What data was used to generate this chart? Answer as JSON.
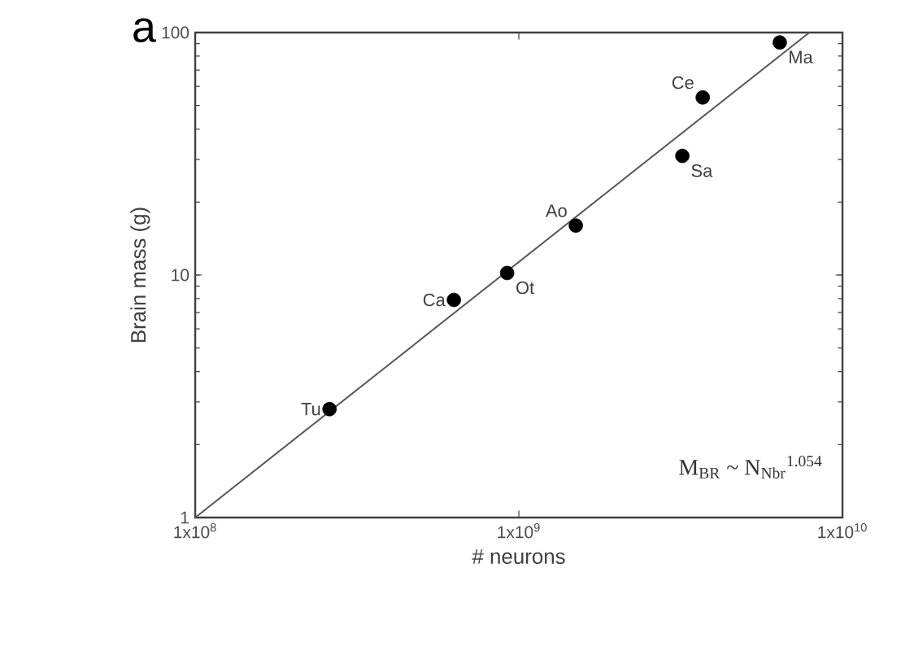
{
  "chart_data": {
    "type": "scatter",
    "xlabel": "# neurons",
    "ylabel": "Brain mass (g)",
    "log": "xy",
    "grid": false,
    "xlim": [
      100000000.0,
      10000000000.0
    ],
    "ylim": [
      1,
      100
    ],
    "xticks": [
      {
        "value": 100000000.0,
        "label": "1x10$^{8}$"
      },
      {
        "value": 1000000000.0,
        "label": "1x10$^{9}$"
      },
      {
        "value": 10000000000.0,
        "label": "1x10$^{10}$"
      }
    ],
    "yticks": [
      1,
      10,
      100
    ],
    "series": [
      {
        "color": "#000000",
        "marker": "circle",
        "x": [
          260000000.0,
          630000000.0,
          920000000.0,
          1500000000.0,
          3200000000.0,
          3700000000.0,
          6400000000.0
        ],
        "values": [
          2.8,
          7.9,
          10.2,
          16,
          31,
          54,
          91
        ]
      },
      {
        "type": "line",
        "color": "#555555",
        "line_style": "solid",
        "x": [
          100000000.0,
          7900000000.0
        ],
        "values": [
          1,
          100
        ]
      }
    ],
    "annotations": [
      "a",
      "M$_{BR}$ ~ N$_{Nbr}$$^{1.054}$",
      {
        "text": "Tu",
        "x": 260000000.0,
        "y": 2.8
      },
      {
        "text": "Ca",
        "x": 630000000.0,
        "y": 7.9
      },
      {
        "text": "Ot",
        "x": 920000000.0,
        "y": 10.2
      },
      {
        "text": "Ao",
        "x": 1500000000.0,
        "y": 16
      },
      {
        "text": "Sa",
        "x": 3200000000.0,
        "y": 31
      },
      {
        "text": "Ce",
        "x": 3700000000.0,
        "y": 54
      },
      {
        "text": "Ma",
        "x": 6400000000.0,
        "y": 91
      }
    ]
  }
}
